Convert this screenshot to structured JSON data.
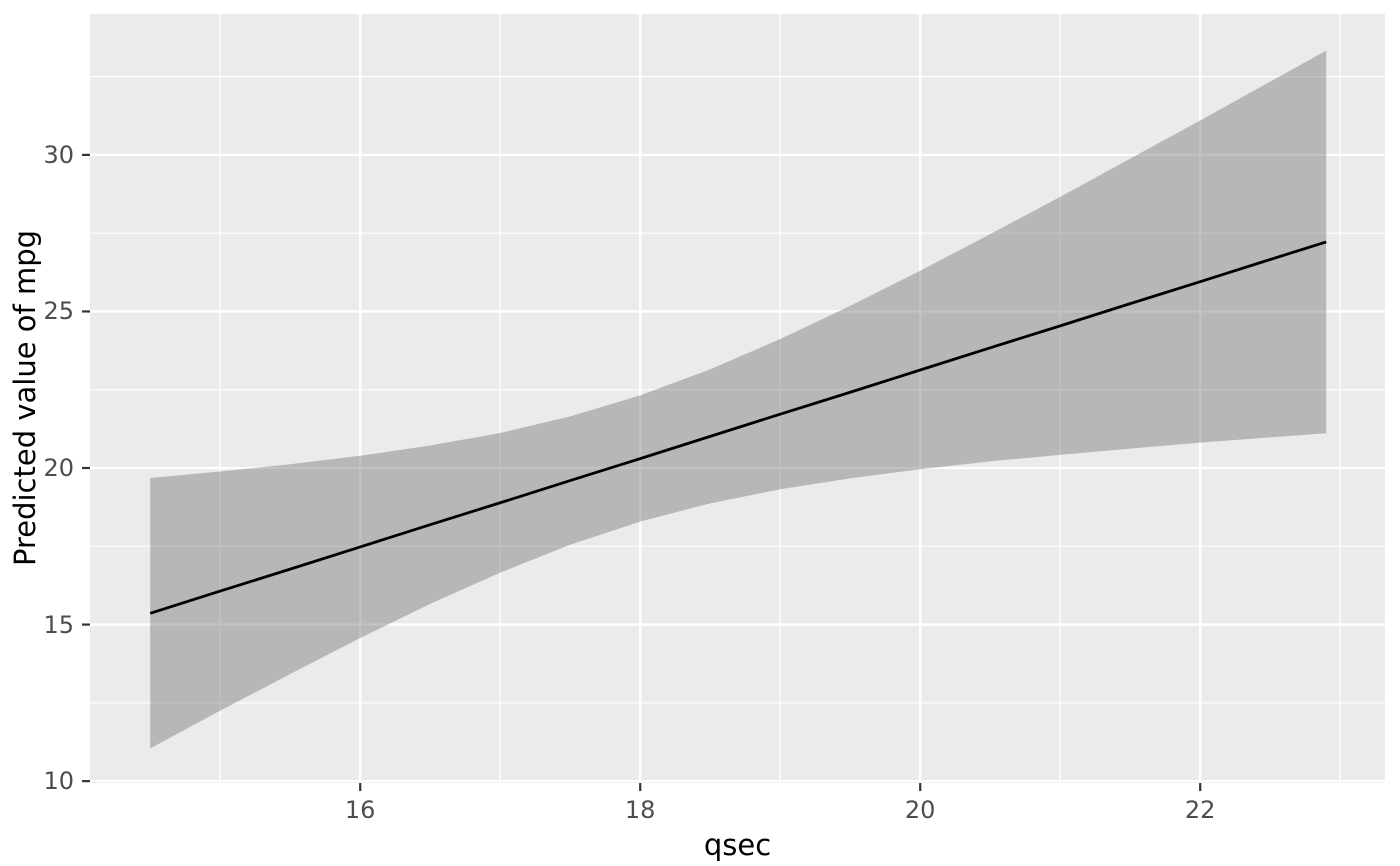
{
  "chart_data": {
    "type": "line",
    "title": "",
    "xlabel": "qsec",
    "ylabel": "Predicted value of mpg",
    "xlim": [
      14.07,
      23.32
    ],
    "ylim": [
      9.94,
      34.5
    ],
    "x_ticks": [
      16,
      18,
      20,
      22
    ],
    "y_ticks": [
      10,
      15,
      20,
      25,
      30
    ],
    "x_minor_ticks": [
      15,
      17,
      19,
      21,
      23
    ],
    "y_minor_ticks": [
      12.5,
      17.5,
      22.5,
      27.5,
      32.5
    ],
    "grid": "on",
    "legend_position": "none",
    "series": [
      {
        "name": "fitted-regression-line",
        "x": [
          14.5,
          15.0,
          15.5,
          16.0,
          16.5,
          17.0,
          17.5,
          18.0,
          18.5,
          19.0,
          19.5,
          20.0,
          20.5,
          21.0,
          21.5,
          22.0,
          22.5,
          22.9
        ],
        "y": [
          15.36,
          16.07,
          16.77,
          17.48,
          18.19,
          18.89,
          19.6,
          20.3,
          21.01,
          21.72,
          22.42,
          23.13,
          23.84,
          24.54,
          25.25,
          25.95,
          26.66,
          27.22
        ]
      }
    ],
    "band": {
      "name": "confidence-interval-ribbon",
      "x": [
        14.5,
        15.0,
        15.5,
        16.0,
        16.5,
        17.0,
        17.5,
        18.0,
        18.5,
        19.0,
        19.5,
        20.0,
        20.5,
        21.0,
        21.5,
        22.0,
        22.5,
        22.9
      ],
      "lower": [
        11.04,
        12.25,
        13.42,
        14.57,
        15.66,
        16.66,
        17.55,
        18.29,
        18.87,
        19.32,
        19.67,
        19.96,
        20.21,
        20.42,
        20.62,
        20.81,
        20.98,
        21.11
      ],
      "upper": [
        19.68,
        19.89,
        20.12,
        20.39,
        20.72,
        21.12,
        21.65,
        22.32,
        23.15,
        24.12,
        25.18,
        26.3,
        27.47,
        28.66,
        29.88,
        31.1,
        32.34,
        33.33
      ]
    },
    "colors": {
      "panel_background": "#EBEBEB",
      "grid_line": "#FFFFFF",
      "ribbon_fill": "#787878",
      "ribbon_opacity": 0.45,
      "line_color": "#000000",
      "tick_mark_color": "#333333",
      "tick_label_color": "#4D4D4D",
      "axis_title_color": "#000000",
      "figure_background": "#FFFFFF"
    }
  }
}
